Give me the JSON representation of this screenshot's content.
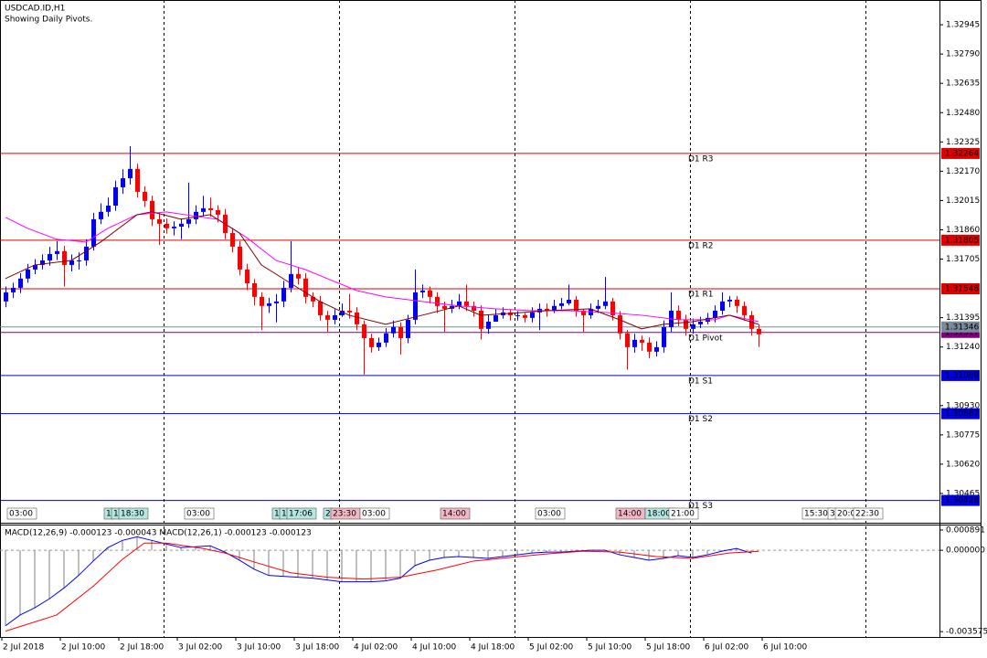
{
  "chart_data": [
    {
      "type": "candlestick",
      "title": "USDCAD.ID,H1",
      "subtitle": "Showing Daily Pivots.",
      "up_color": "#0000ff",
      "down_color": "#ff0000",
      "open": [
        1.31481,
        1.31529,
        1.31553,
        1.31602,
        1.3165,
        1.31674,
        1.31698,
        1.31732,
        1.31747,
        1.31674,
        1.31698,
        1.31698,
        1.31771,
        1.31916,
        1.31955,
        1.31988,
        1.32085,
        1.32133,
        1.32182,
        1.32061,
        1.32013,
        1.31916,
        1.31892,
        1.31868,
        1.31877,
        1.31892,
        1.31916,
        1.31955,
        1.31974,
        1.31964,
        1.3194,
        1.31843,
        1.31771,
        1.3165,
        1.31577,
        1.31505,
        1.31457,
        1.31471,
        1.31481,
        1.31553,
        1.31626,
        1.31602,
        1.31505,
        1.31481,
        1.31408,
        1.31384,
        1.31408,
        1.31432,
        1.31423,
        1.3136,
        1.31287,
        1.31239,
        1.31263,
        1.31312,
        1.31345,
        1.31287,
        1.31384,
        1.31529,
        1.31539,
        1.31505,
        1.31457,
        1.31442,
        1.31457,
        1.31481,
        1.31457,
        1.31432,
        1.31336,
        1.31374,
        1.31408,
        1.31423,
        1.31408,
        1.31408,
        1.31394,
        1.31423,
        1.31442,
        1.31432,
        1.31457,
        1.31471,
        1.3149,
        1.31432,
        1.31408,
        1.31442,
        1.31457,
        1.31481,
        1.31408,
        1.31312,
        1.31239,
        1.31278,
        1.31263,
        1.31215,
        1.31239,
        1.31345,
        1.31432,
        1.31384,
        1.31336,
        1.3136,
        1.31374,
        1.31394,
        1.31432,
        1.31481,
        1.3149,
        1.31457,
        1.31408,
        1.31336
      ],
      "high": [
        1.3156,
        1.3158,
        1.3163,
        1.3168,
        1.31705,
        1.3173,
        1.3177,
        1.318,
        1.31775,
        1.3173,
        1.3174,
        1.3181,
        1.3195,
        1.32,
        1.3203,
        1.3212,
        1.3218,
        1.32302,
        1.3221,
        1.3209,
        1.3204,
        1.3195,
        1.3192,
        1.31905,
        1.3192,
        1.3211,
        1.3199,
        1.3204,
        1.3203,
        1.3199,
        1.3197,
        1.3187,
        1.318,
        1.3168,
        1.316,
        1.3153,
        1.315,
        1.3152,
        1.3159,
        1.318,
        1.3166,
        1.3163,
        1.3153,
        1.3151,
        1.3143,
        1.3144,
        1.3147,
        1.3152,
        1.3145,
        1.3138,
        1.3131,
        1.3129,
        1.3134,
        1.3138,
        1.3137,
        1.3141,
        1.3165,
        1.3157,
        1.3156,
        1.3153,
        1.3148,
        1.3149,
        1.3152,
        1.3157,
        1.3148,
        1.3146,
        1.3141,
        1.3144,
        1.3145,
        1.3144,
        1.3143,
        1.3142,
        1.3145,
        1.3147,
        1.3147,
        1.3149,
        1.315,
        1.3157,
        1.3151,
        1.3144,
        1.3147,
        1.3149,
        1.3161,
        1.315,
        1.3143,
        1.3133,
        1.3131,
        1.313,
        1.3129,
        1.3127,
        1.3138,
        1.3153,
        1.3146,
        1.3141,
        1.3139,
        1.314,
        1.3142,
        1.3146,
        1.3153,
        1.3151,
        1.3151,
        1.3148,
        1.3143,
        1.3136
      ],
      "low": [
        1.3145,
        1.315,
        1.31525,
        1.3158,
        1.31625,
        1.3165,
        1.3167,
        1.317,
        1.3156,
        1.3164,
        1.3165,
        1.3167,
        1.3175,
        1.3189,
        1.3193,
        1.3196,
        1.3205,
        1.321,
        1.3203,
        1.3198,
        1.3188,
        1.3178,
        1.3184,
        1.3183,
        1.3181,
        1.3187,
        1.3189,
        1.3193,
        1.3193,
        1.319,
        1.3181,
        1.3174,
        1.3162,
        1.3154,
        1.3146,
        1.3133,
        1.3142,
        1.3137,
        1.3145,
        1.3153,
        1.3157,
        1.3147,
        1.3145,
        1.3138,
        1.3132,
        1.3136,
        1.314,
        1.3139,
        1.3133,
        1.31094,
        1.3121,
        1.3122,
        1.3124,
        1.3129,
        1.312,
        1.3126,
        1.3136,
        1.315,
        1.3147,
        1.3142,
        1.3132,
        1.3142,
        1.3144,
        1.3143,
        1.314,
        1.3128,
        1.3131,
        1.3138,
        1.3139,
        1.3138,
        1.3138,
        1.3137,
        1.3137,
        1.3133,
        1.314,
        1.3142,
        1.3144,
        1.3146,
        1.314,
        1.3132,
        1.3139,
        1.3142,
        1.3144,
        1.3138,
        1.3128,
        1.3112,
        1.3121,
        1.3122,
        1.3118,
        1.3119,
        1.3121,
        1.3132,
        1.3135,
        1.313,
        1.3131,
        1.3134,
        1.3136,
        1.3137,
        1.3141,
        1.3145,
        1.3142,
        1.3138,
        1.313,
        1.3124
      ],
      "close": [
        1.31529,
        1.31553,
        1.31602,
        1.3165,
        1.31674,
        1.31698,
        1.31732,
        1.31747,
        1.31674,
        1.31698,
        1.31698,
        1.31771,
        1.31916,
        1.31955,
        1.31988,
        1.32085,
        1.32133,
        1.32182,
        1.32061,
        1.32013,
        1.31916,
        1.31892,
        1.31868,
        1.31877,
        1.31892,
        1.31916,
        1.31955,
        1.31974,
        1.31964,
        1.3194,
        1.31843,
        1.31771,
        1.3165,
        1.31577,
        1.31505,
        1.31457,
        1.31471,
        1.31481,
        1.31553,
        1.31626,
        1.31602,
        1.31505,
        1.31481,
        1.31408,
        1.31384,
        1.31408,
        1.31432,
        1.31423,
        1.3136,
        1.31287,
        1.31239,
        1.31263,
        1.31312,
        1.31345,
        1.31287,
        1.31384,
        1.31529,
        1.31539,
        1.31505,
        1.31457,
        1.31442,
        1.31457,
        1.31481,
        1.31457,
        1.31432,
        1.31336,
        1.31374,
        1.31408,
        1.31423,
        1.31408,
        1.31408,
        1.31394,
        1.31423,
        1.31442,
        1.31432,
        1.31457,
        1.31471,
        1.3149,
        1.31432,
        1.31408,
        1.31442,
        1.31457,
        1.31481,
        1.31408,
        1.31312,
        1.31239,
        1.31278,
        1.31263,
        1.31215,
        1.31239,
        1.31345,
        1.31432,
        1.31384,
        1.31336,
        1.3136,
        1.31374,
        1.31394,
        1.31432,
        1.31481,
        1.3149,
        1.31457,
        1.31408,
        1.31336,
        1.31307
      ],
      "series": [
        {
          "color": "#ff00ff",
          "x": [
            0,
            3,
            7,
            11,
            14,
            18,
            22,
            27,
            29,
            33,
            37,
            41,
            44,
            48,
            52,
            57,
            62,
            67,
            72,
            77,
            82,
            87,
            92,
            97,
            99,
            103
          ],
          "values": [
            1.31926,
            1.31868,
            1.3181,
            1.31795,
            1.31868,
            1.3194,
            1.31955,
            1.31926,
            1.31916,
            1.31819,
            1.31698,
            1.3165,
            1.31602,
            1.31539,
            1.31505,
            1.31481,
            1.31457,
            1.31442,
            1.31432,
            1.31432,
            1.31423,
            1.31408,
            1.31384,
            1.31384,
            1.31408,
            1.31374
          ]
        },
        {
          "color": "#800000",
          "x": [
            0,
            4,
            9,
            13,
            18,
            20,
            24,
            28,
            32,
            35,
            39,
            43,
            47,
            52,
            57,
            62,
            65,
            69,
            74,
            80,
            84,
            87,
            90,
            94,
            99,
            103
          ],
          "values": [
            1.31602,
            1.31674,
            1.31698,
            1.31795,
            1.3194,
            1.31955,
            1.31916,
            1.3194,
            1.31843,
            1.31674,
            1.31577,
            1.31481,
            1.31408,
            1.3136,
            1.31408,
            1.31457,
            1.31408,
            1.31418,
            1.31432,
            1.31442,
            1.31384,
            1.31336,
            1.3136,
            1.31374,
            1.31408,
            1.3136
          ]
        }
      ],
      "levels": [
        {
          "label": "D1 R3",
          "value": 1.32264,
          "color": "#e00000"
        },
        {
          "label": "D1 R2",
          "value": 1.31805,
          "color": "#e00000"
        },
        {
          "label": "D1 R1",
          "value": 1.31548,
          "color": "#e00000"
        },
        {
          "label": "D1 Pivot",
          "value": 1.31317,
          "color": "#800080"
        },
        {
          "label": "D1 S1",
          "value": 1.31089,
          "color": "#0000e0"
        },
        {
          "label": "D1 S2",
          "value": 1.30887,
          "color": "#0000e0"
        },
        {
          "label": "D1 S3",
          "value": 1.30428,
          "color": "#0000e0"
        }
      ],
      "last_price": 1.31346,
      "last_price_color": "#7a8a9a",
      "ylim": [
        1.3031,
        1.33076
      ],
      "yticks": [
        1.32945,
        {
          "value": 1.3279,
          "label": "1.32790"
        },
        1.32635,
        {
          "value": 1.3248,
          "label": "1.32480"
        },
        1.32325,
        {
          "value": 1.3217,
          "label": "1.32170"
        },
        1.32015,
        {
          "value": 1.3186,
          "label": "1.31860"
        },
        1.31705,
        1.31395,
        {
          "value": 1.3124,
          "label": "1.31240"
        },
        {
          "value": 1.3093,
          "label": "1.30930"
        },
        1.30775,
        {
          "value": 1.3062,
          "label": "1.30620"
        },
        1.30465
      ],
      "x_labels": [
        "2 Jul 2018",
        "2 Jul 10:00",
        "2 Jul 18:00",
        "3 Jul 02:00",
        "3 Jul 10:00",
        "3 Jul 18:00",
        "4 Jul 02:00",
        "4 Jul 10:00",
        "4 Jul 18:00",
        "5 Jul 02:00",
        "5 Jul 10:00",
        "5 Jul 18:00",
        "6 Jul 02:00",
        "6 Jul 10:00"
      ],
      "event_tags": [
        {
          "label": "03:00",
          "color": "#ffffff"
        },
        {
          "label": "1",
          "color": "#b4e6e2"
        },
        {
          "label": "1",
          "color": "#b4e6e2"
        },
        {
          "label": "18:30",
          "color": "#b4e6e2"
        },
        {
          "label": "03:00",
          "color": "#ffffff"
        },
        {
          "label": "1",
          "color": "#b4e6e2"
        },
        {
          "label": "1",
          "color": "#b4e6e2"
        },
        {
          "label": "17:06",
          "color": "#b4e6e2"
        },
        {
          "label": "2",
          "color": "#b4e6e2"
        },
        {
          "label": "23:30",
          "color": "#f4b8c4"
        },
        {
          "label": "03:00",
          "color": "#ffffff"
        },
        {
          "label": "14:00",
          "color": "#f4b8c4"
        },
        {
          "label": "03:00",
          "color": "#ffffff"
        },
        {
          "label": "14:00",
          "color": "#f4b8c4"
        },
        {
          "label": "18:00",
          "color": "#b4e6e2"
        },
        {
          "label": "21:00",
          "color": "#ffffff"
        },
        {
          "label": "15:30",
          "color": "#ffffff"
        },
        {
          "label": "3",
          "color": "#ffffff"
        },
        {
          "label": "20:0",
          "color": "#ffffff"
        },
        {
          "label": "22:30",
          "color": "#ffffff"
        }
      ]
    },
    {
      "type": "macd",
      "title": "MACD(12,26,9) -0.000123 -0.000043 MACD(12,26,1) -0.000123 -0.000123",
      "histogram_color": "#808080",
      "line_color": "#0000ff",
      "signal_color": "#ff0000",
      "x": [
        0,
        2,
        4,
        6,
        8,
        10,
        12,
        14,
        16,
        18,
        20,
        22,
        24,
        26,
        28,
        30,
        32,
        34,
        36,
        38,
        40,
        42,
        44,
        46,
        48,
        50,
        52,
        54,
        56,
        58,
        60,
        62,
        64,
        66,
        68,
        70,
        72,
        74,
        76,
        78,
        80,
        82,
        84,
        86,
        88,
        90,
        92,
        94,
        96,
        98,
        100,
        102
      ],
      "values": [
        -0.003318,
        -0.002844,
        -0.002528,
        -0.002133,
        -0.001659,
        -0.001106,
        -0.000474,
        0.000119,
        0.000435,
        0.000593,
        0.000435,
        0.000277,
        0.000119,
        0.000158,
        0.000198,
        -7.9e-05,
        -0.000435,
        -0.00083,
        -0.001106,
        -0.001146,
        -0.001185,
        -0.001225,
        -0.001304,
        -0.001383,
        -0.001383,
        -0.001383,
        -0.001343,
        -0.001225,
        -0.000672,
        -0.000435,
        -0.000316,
        -0.000277,
        -0.000316,
        -0.000356,
        -0.000277,
        -0.000198,
        -0.000119,
        -7.9e-05,
        -7.9e-05,
        -4e-05,
        0,
        0,
        -0.000198,
        -0.000316,
        -0.000435,
        -0.000356,
        -0.000237,
        -0.000316,
        -0.000198,
        -4e-05,
        7.9e-05,
        -0.000123
      ],
      "signal_x": [
        0,
        7,
        12,
        16,
        19,
        22,
        27,
        30,
        34,
        39,
        44,
        49,
        54,
        59,
        64,
        69,
        74,
        79,
        84,
        89,
        94,
        99,
        103
      ],
      "signal": [
        -0.003555,
        -0.002844,
        -0.00158,
        -0.000395,
        0.000316,
        0.000316,
        7.9e-05,
        -0.000119,
        -0.000514,
        -0.000988,
        -0.001185,
        -0.001264,
        -0.001185,
        -0.000869,
        -0.000474,
        -0.000316,
        -0.000158,
        -4e-05,
        -7.9e-05,
        -0.000277,
        -0.000356,
        -0.000119,
        -4.3e-05
      ],
      "ylim": [
        -0.00381,
        0.00109
      ],
      "yticks": [
        0.000891,
        {
          "value": 0,
          "label": "0.000000"
        },
        -0.003575
      ]
    }
  ]
}
